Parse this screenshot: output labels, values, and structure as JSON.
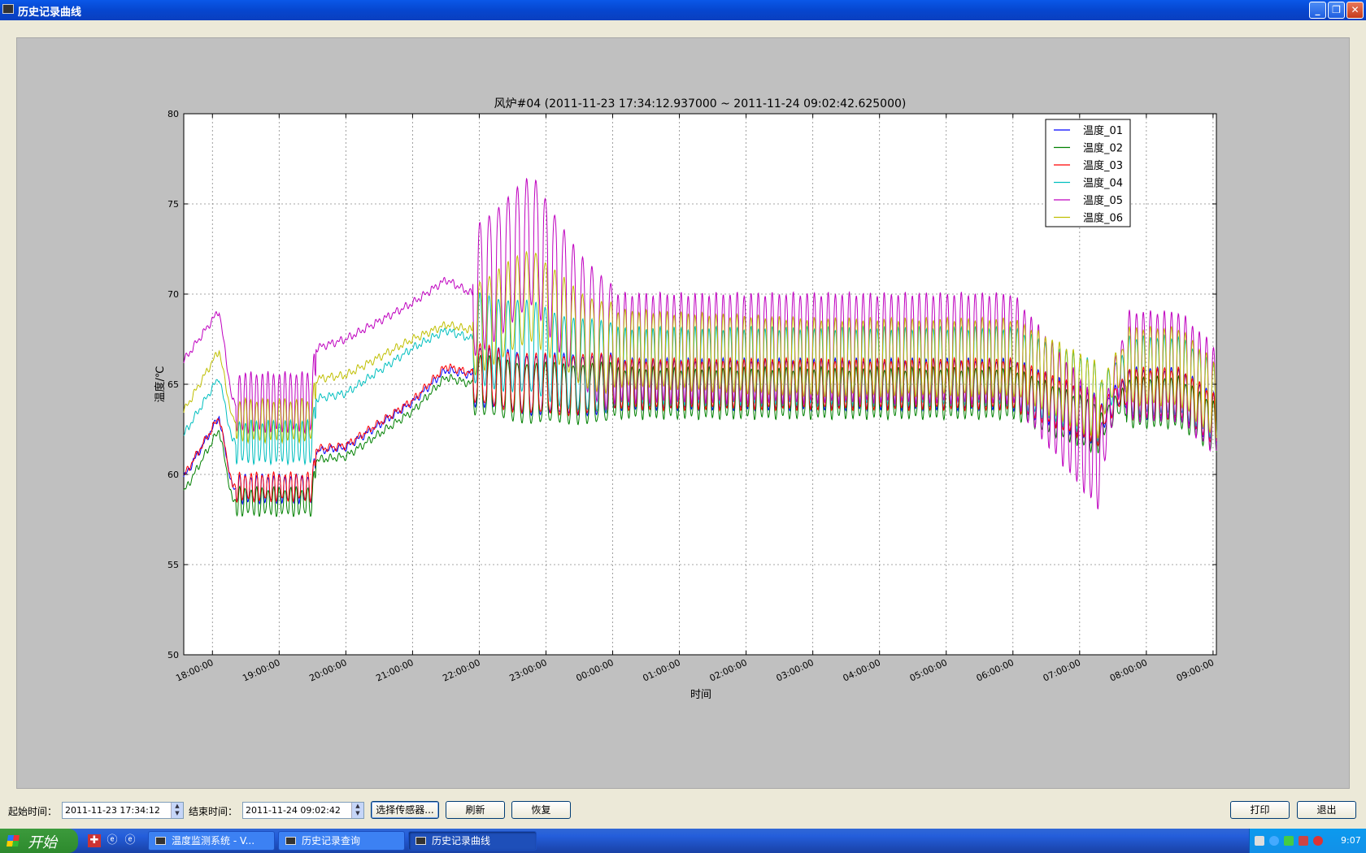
{
  "window": {
    "title": "历史记录曲线",
    "min": "_",
    "max": "❐",
    "close": "✕"
  },
  "chart_data": {
    "type": "line",
    "title": "风炉#04 (2011-11-23 17:34:12.937000 ~ 2011-11-24 09:02:42.625000)",
    "xlabel": "时间",
    "ylabel": "温度/℃",
    "x_start": "2011-11-23 17:34:12",
    "x_end": "2011-11-24 09:02:42",
    "xlim_hours": [
      17.57,
      33.05
    ],
    "ylim": [
      50,
      80
    ],
    "yticks": [
      "50",
      "55",
      "60",
      "65",
      "70",
      "75",
      "80"
    ],
    "xticks": [
      "18:00:00",
      "19:00:00",
      "20:00:00",
      "21:00:00",
      "22:00:00",
      "23:00:00",
      "00:00:00",
      "01:00:00",
      "02:00:00",
      "03:00:00",
      "04:00:00",
      "05:00:00",
      "06:00:00",
      "07:00:00",
      "08:00:00",
      "09:00:00"
    ],
    "grid": true,
    "legend_position": "top-right",
    "series": [
      {
        "name": "温度_01",
        "color": "#0000ff"
      },
      {
        "name": "温度_02",
        "color": "#008000"
      },
      {
        "name": "温度_03",
        "color": "#ff0000"
      },
      {
        "name": "温度_04",
        "color": "#00bfbf"
      },
      {
        "name": "温度_05",
        "color": "#bf00bf"
      },
      {
        "name": "温度_06",
        "color": "#bfbf00"
      }
    ],
    "key_points_approx": {
      "hours": [
        17.57,
        18.1,
        18.3,
        19.0,
        19.5,
        19.55,
        20.0,
        21.0,
        21.5,
        21.9,
        22.8,
        23.5,
        24.0,
        27.0,
        30.0,
        31.3,
        31.6,
        32.5,
        33.05
      ],
      "温度_01": [
        59.8,
        63.2,
        59.2,
        59.2,
        59.2,
        61.3,
        61.5,
        64.0,
        65.8,
        65.5,
        65.0,
        65.0,
        65.0,
        65.0,
        65.0,
        63.0,
        64.5,
        64.5,
        63.0
      ],
      "温度_02": [
        59.0,
        62.5,
        58.5,
        58.5,
        58.5,
        60.8,
        61.0,
        63.5,
        65.4,
        65.0,
        64.5,
        64.5,
        64.5,
        64.5,
        64.5,
        62.5,
        64.0,
        64.0,
        62.5
      ],
      "温度_03": [
        59.9,
        63.2,
        59.3,
        59.3,
        59.3,
        61.4,
        61.6,
        64.1,
        66.0,
        65.6,
        65.0,
        65.0,
        65.0,
        65.0,
        65.0,
        63.0,
        64.5,
        64.5,
        63.0
      ],
      "温度_04": [
        62.2,
        65.4,
        61.8,
        61.8,
        61.8,
        64.2,
        64.5,
        67.0,
        68.0,
        67.5,
        67.0,
        66.0,
        66.0,
        66.0,
        66.0,
        64.0,
        65.5,
        65.5,
        64.0
      ],
      "温度_05": [
        66.3,
        69.1,
        64.0,
        64.0,
        64.0,
        67.0,
        67.5,
        69.5,
        70.8,
        70.0,
        73.0,
        68.5,
        67.0,
        67.0,
        67.0,
        61.0,
        66.0,
        66.0,
        64.0
      ],
      "温度_06": [
        63.5,
        66.9,
        63.0,
        63.0,
        63.0,
        65.3,
        65.5,
        67.5,
        68.3,
        68.0,
        70.0,
        67.5,
        67.0,
        66.5,
        66.5,
        64.0,
        66.0,
        66.0,
        64.0
      ]
    }
  },
  "controls": {
    "start_label": "起始时间：",
    "start_value": "2011-11-23 17:34:12",
    "end_label": "结束时间：",
    "end_value": "2011-11-24 09:02:42",
    "select_sensor": "选择传感器...",
    "refresh": "刷新",
    "restore": "恢复",
    "print": "打印",
    "exit": "退出"
  },
  "taskbar": {
    "start": "开始",
    "tasks": [
      "温度监测系统 - V...",
      "历史记录查询",
      "历史记录曲线"
    ],
    "clock": "9:07"
  }
}
